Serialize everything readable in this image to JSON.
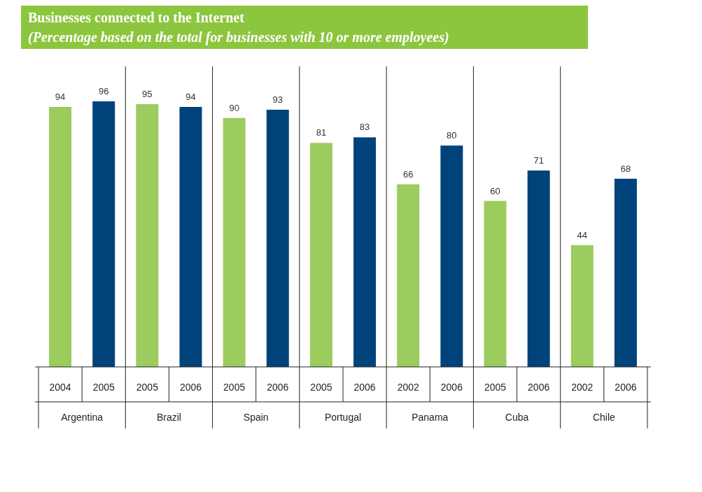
{
  "chart_data": {
    "type": "bar",
    "title": "Businesses connected to the Internet",
    "subtitle": "(Percentage based on the total for businesses with 10 or more employees)",
    "categories": [
      "2004",
      "2005",
      "2005",
      "2006",
      "2005",
      "2006",
      "2005",
      "2006",
      "2002",
      "2006",
      "2005",
      "2006",
      "2002",
      "2006"
    ],
    "values": [
      94,
      96,
      95,
      94,
      90,
      93,
      81,
      83,
      66,
      80,
      60,
      71,
      44,
      68
    ],
    "colors": [
      "#9ccc5e",
      "#00437a",
      "#9ccc5e",
      "#00437a",
      "#9ccc5e",
      "#00437a",
      "#9ccc5e",
      "#00437a",
      "#9ccc5e",
      "#00437a",
      "#9ccc5e",
      "#00437a",
      "#9ccc5e",
      "#00437a"
    ],
    "annotations": [
      "Argentina",
      "Brazil",
      "Spain",
      "Portugal",
      "Panama",
      "Cuba",
      "Chile"
    ],
    "data_labels": true
  }
}
